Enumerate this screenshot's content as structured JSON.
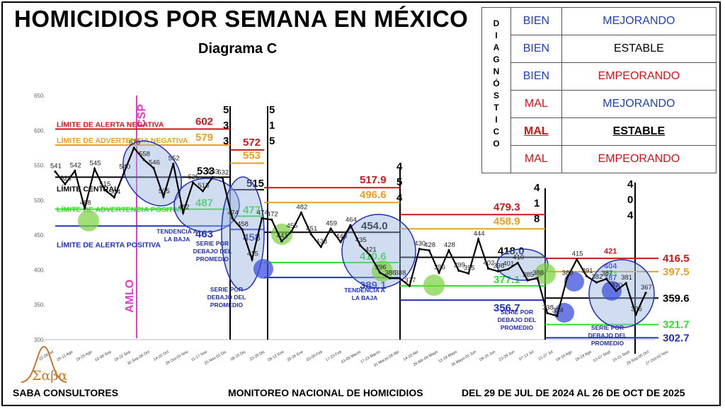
{
  "header": {
    "title": "HOMICIDIOS POR SEMANA EN MÉXICO",
    "subtitle": "Diagrama C"
  },
  "diagnostic_table": {
    "vertical_label": "DIAGNÓSTICO",
    "rows": [
      {
        "left": "BIEN",
        "right": "MEJORANDO",
        "left_color": "#1f3fbf",
        "right_color": "#1f3fbf"
      },
      {
        "left": "BIEN",
        "right": "ESTABLE",
        "left_color": "#1f3fbf",
        "right_color": "#000000"
      },
      {
        "left": "BIEN",
        "right": "EMPEORANDO",
        "left_color": "#1f3fbf",
        "right_color": "#d0151a"
      },
      {
        "left": "MAL",
        "right": "MEJORANDO",
        "left_color": "#d0151a",
        "right_color": "#1f3fbf"
      },
      {
        "left": "MAL",
        "right": "ESTABLE",
        "left_color": "#d0151a",
        "right_color": "#000000",
        "highlight": true
      },
      {
        "left": "MAL",
        "right": "EMPEORANDO",
        "left_color": "#d0151a",
        "right_color": "#d0151a"
      }
    ]
  },
  "footer": {
    "company": "SABA CONSULTORES",
    "logo_text": "Σαβα",
    "center": "MONITOREO NACIONAL DE HOMICIDIOS",
    "right": "DEL 29 DE JUL DE 2024 AL 26 DE OCT DE 2025"
  },
  "chart_data": {
    "type": "line",
    "ylim": [
      300,
      650
    ],
    "yticks": [
      300,
      350,
      400,
      450,
      500,
      550,
      600,
      650
    ],
    "xlabels": [
      "22-28 Jul",
      "05-11 Ago",
      "19-25 Ago",
      "02-08 Sep",
      "16-22 Sep",
      "30 Sep-06 Oct",
      "14-20 Oct",
      "28 Oct-03 Nov",
      "11-17 Nov",
      "25 Nov-01 Dic",
      "09-15 Dic",
      "23-29 Dic",
      "06-12 Ene",
      "20-26 Ene",
      "03-09 Feb",
      "17-23 Feb",
      "03-09 Marzo",
      "17-23 Marzo",
      "31 Marzo-06 Abr",
      "14-20 Abr",
      "28 Abr-04 Mayo",
      "12-18 Mayo",
      "26 Mayo-01 Jun",
      "09-15 Jun",
      "23-29 Jun",
      "07-13 Jul",
      "21-27 Jul",
      "04-10 Ago",
      "18-24 Ago",
      "01-07 Sept",
      "15-21 Sept",
      "29 Sep-05 Oct",
      "27 Oct-02 Nov"
    ],
    "series": [
      {
        "values": [
          541,
          523,
          542,
          488,
          545,
          515,
          504,
          540,
          575,
          558,
          546,
          505,
          552,
          482,
          525,
          513,
          533,
          532,
          474,
          458,
          415,
          474,
          472,
          441,
          455,
          482,
          451,
          433,
          459,
          440,
          464,
          435,
          421,
          396,
          388,
          388,
          377,
          430,
          428,
          396,
          428,
          399,
          395,
          444,
          402,
          398,
          401,
          410,
          385,
          388,
          338,
          334,
          388,
          415,
          391,
          382,
          387,
          370,
          381,
          336,
          367
        ]
      }
    ],
    "periods": [
      {
        "cl": 533,
        "uwl": 579,
        "ucl": 602,
        "lwl": 487,
        "lcl": 463,
        "center_label": "LÍMITE CENTRAL",
        "upper_alert_label": "LÍMITE DE ALERTA NEGATIVA",
        "upper_warn_label": "LÍMITE DE ADVERTENCIA NEGATIVA",
        "lower_warn_label": "LÍMITE DE ADVERTENCIA POSITIVA",
        "lower_alert_label": "LÍMITE DE ALERTA POSITIVA",
        "marker": [
          "5",
          "3",
          "3"
        ]
      },
      {
        "cl": 515,
        "uwl": 553,
        "ucl": 572,
        "lwl": 477,
        "lcl": 458,
        "marker": [
          "5",
          "1",
          "5"
        ]
      },
      {
        "cl": 454.0,
        "uwl": 496.6,
        "ucl": 517.9,
        "lwl": 410.6,
        "lcl": 389.1,
        "marker": [
          "4",
          "5",
          "4"
        ]
      },
      {
        "cl": 418.0,
        "uwl": 458.9,
        "ucl": 479.3,
        "lwl": 377.1,
        "lcl": 356.7,
        "marker": [
          "4",
          "1",
          "8"
        ]
      },
      {
        "cl": 359.6,
        "uwl": 397.5,
        "ucl": 416.5,
        "lwl": 321.7,
        "lcl": 302.7,
        "marker": [
          "4",
          "0",
          "4"
        ],
        "extra_upper": [
          421,
          404,
          393,
          387
        ]
      }
    ],
    "annotations": [
      "AMLO",
      "CSP",
      "TENDENCIA A LA BAJA",
      "SERIE POR DEBAJO DEL PROMEDIO",
      "SERIE POR DEBAJO DEL PROMEDIO",
      "TENDENCIA A LA BAJA",
      "SERIE POR DEBAJO DEL PROMEDIO",
      "SERIE POR DEBAJO DEL PROMEDIO"
    ],
    "colors": {
      "ucl": "#d0151a",
      "uwl": "#e8a023",
      "cl": "#000000",
      "lwl": "#2ee02a",
      "lcl": "#1f2fbf",
      "series": "#000000",
      "amlo": "#e040c8"
    }
  }
}
